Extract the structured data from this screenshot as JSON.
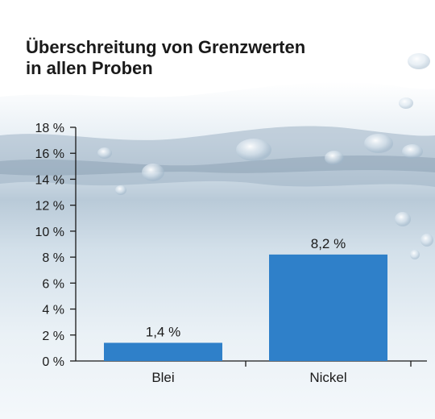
{
  "chart_data": {
    "type": "bar",
    "title_lines": [
      "Überschreitung von Grenzwerten",
      "in allen Proben"
    ],
    "categories": [
      "Blei",
      "Nickel"
    ],
    "values": [
      1.4,
      8.2
    ],
    "data_labels": [
      "1,4 %",
      "8,2 %"
    ],
    "ylim": [
      0,
      18
    ],
    "y_ticks": [
      0,
      2,
      4,
      6,
      8,
      10,
      12,
      14,
      16,
      18
    ],
    "y_tick_labels": [
      "0 %",
      "2 %",
      "4 %",
      "6 %",
      "8 %",
      "10 %",
      "12 %",
      "14 %",
      "16 %",
      "18 %"
    ],
    "xlabel": "",
    "ylabel": "",
    "grid": false,
    "legend": "none",
    "bar_color": "#2f80c9",
    "axis_color": "#1a1a1a"
  },
  "background": {
    "style": "water-splash",
    "water_color": "#c9d9e6"
  }
}
